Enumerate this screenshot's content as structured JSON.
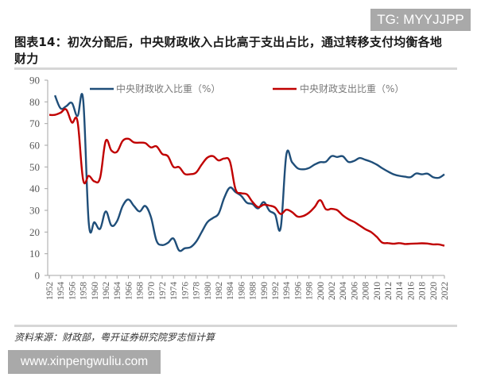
{
  "watermarks": {
    "top_right": "TG: MYYJJPP",
    "bottom_left": "www.xinpengwuliu.com"
  },
  "figure": {
    "title": "图表14：初次分配后，中央财政收入占比高于支出占比，通过转移支付均衡各地财力",
    "title_line1": "图表14：初次分配后，中央财政收入占比高于支出占比，通过转移支付均衡各地",
    "title_line2": "财力",
    "source": "资料来源：财政部，粤开证券研究院罗志恒计算"
  },
  "colors": {
    "revenue": "#1f4e79",
    "expenditure": "#c00000",
    "axis": "#a6a6a6",
    "watermark_bg": "#a9a9a9"
  },
  "chart_data": {
    "type": "line",
    "title": "图表14：初次分配后，中央财政收入占比高于支出占比，通过转移支付均衡各地财力",
    "xlabel": "",
    "ylabel": "",
    "ylim": [
      0,
      90
    ],
    "yticks": [
      0,
      10,
      20,
      30,
      40,
      50,
      60,
      70,
      80,
      90
    ],
    "xlim": [
      1952,
      2022
    ],
    "xticks": [
      1952,
      1954,
      1956,
      1958,
      1960,
      1962,
      1964,
      1966,
      1968,
      1970,
      1972,
      1974,
      1976,
      1978,
      1980,
      1982,
      1984,
      1986,
      1988,
      1990,
      1992,
      1994,
      1996,
      1998,
      2000,
      2002,
      2004,
      2006,
      2008,
      2010,
      2012,
      2014,
      2016,
      2018,
      2020,
      2022
    ],
    "grid": false,
    "legend_position": "top",
    "x": [
      1952,
      1953,
      1954,
      1955,
      1956,
      1957,
      1958,
      1959,
      1960,
      1961,
      1962,
      1963,
      1964,
      1965,
      1966,
      1967,
      1968,
      1969,
      1970,
      1971,
      1972,
      1973,
      1974,
      1975,
      1976,
      1977,
      1978,
      1979,
      1980,
      1981,
      1982,
      1983,
      1984,
      1985,
      1986,
      1987,
      1988,
      1989,
      1990,
      1991,
      1992,
      1993,
      1994,
      1995,
      1996,
      1997,
      1998,
      1999,
      2000,
      2001,
      2002,
      2003,
      2004,
      2005,
      2006,
      2007,
      2008,
      2009,
      2010,
      2011,
      2012,
      2013,
      2014,
      2015,
      2016,
      2017,
      2018,
      2019,
      2020,
      2021,
      2022
    ],
    "series": [
      {
        "name": "中央财政收入比重（%）",
        "color": "#1f4e79",
        "values": [
          null,
          83,
          77,
          78,
          79.5,
          73.5,
          81,
          24,
          24.5,
          21.5,
          29.5,
          23,
          25,
          32,
          35,
          32,
          29.5,
          32,
          27,
          16,
          14,
          15,
          17,
          11.5,
          12.5,
          13,
          15.5,
          20,
          24.5,
          26.5,
          28.5,
          35.8,
          40.5,
          38.4,
          36.7,
          33.5,
          32.9,
          30.9,
          33.8,
          29.8,
          28.1,
          22,
          55.7,
          52.2,
          49.4,
          48.9,
          49.5,
          51.1,
          52.2,
          52.4,
          55,
          54.6,
          54.9,
          52.3,
          52.8,
          54.1,
          53.3,
          52.4,
          51.1,
          49.4,
          47.9,
          46.6,
          45.9,
          45.5,
          45.3,
          47,
          46.6,
          46.9,
          45.3,
          45,
          46.6
        ]
      },
      {
        "name": "中央财政支出比重（%）",
        "color": "#c00000",
        "values": [
          74,
          74,
          75,
          76.5,
          70.5,
          71,
          44,
          45.9,
          43.3,
          45,
          62,
          57.6,
          57,
          62,
          63,
          61.3,
          61.2,
          61,
          59,
          59.5,
          56,
          55,
          50,
          49.9,
          46.8,
          46.7,
          47.4,
          51.1,
          54.3,
          55,
          53,
          53.9,
          52.5,
          39.7,
          37.9,
          37.4,
          33.9,
          31.5,
          32.6,
          32.2,
          31.3,
          28.3,
          30.3,
          29.2,
          27.1,
          27.4,
          28.9,
          31.5,
          34.7,
          30.5,
          30.7,
          30.1,
          27.7,
          25.9,
          24.7,
          23,
          21.3,
          20,
          17.8,
          15.1,
          14.9,
          14.6,
          14.9,
          14.5,
          14.6,
          14.7,
          14.8,
          14.7,
          14.3,
          14.3,
          13.7
        ]
      }
    ]
  }
}
